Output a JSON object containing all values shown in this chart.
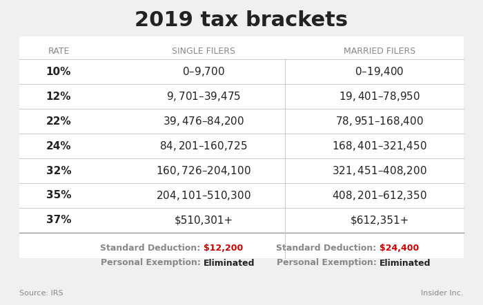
{
  "title": "2019 tax brackets",
  "background_color": "#f0f0f0",
  "table_background": "#ffffff",
  "header_row": [
    "RATE",
    "SINGLE FILERS",
    "MARRIED FILERS"
  ],
  "rates": [
    "10%",
    "12%",
    "22%",
    "24%",
    "32%",
    "35%",
    "37%"
  ],
  "single_filers": [
    "$0 – $9,700",
    "$9,701 – $39,475",
    "$39,476 – $84,200",
    "$84,201 – $160,725",
    "$160,726 – $204,100",
    "$204,101 – $510,300",
    "$510,301+"
  ],
  "married_filers": [
    "$0 – $19,400",
    "$19,401 – $78,950",
    "$78,951 – $168,400",
    "$168,401 – $321,450",
    "$321,451 – $408,200",
    "$408,201 – $612,350",
    "$612,351+"
  ],
  "footer_single_std": "Standard Deduction: ",
  "footer_single_std_val": "$12,200",
  "footer_single_pe": "Personal Exemption: ",
  "footer_single_pe_val": "Eliminated",
  "footer_married_std": "Standard Deduction: ",
  "footer_married_std_val": "$24,400",
  "footer_married_pe": "Personal Exemption: ",
  "footer_married_pe_val": "Eliminated",
  "source_text": "Source: IRS",
  "credit_text": "Insider Inc.",
  "red_color": "#cc0000",
  "dark_text": "#222222",
  "gray_header_text": "#888888",
  "line_color": "#cccccc",
  "title_fontsize": 22,
  "header_fontsize": 9,
  "rate_fontsize": 11,
  "data_fontsize": 11,
  "footer_fontsize": 9,
  "source_fontsize": 8
}
